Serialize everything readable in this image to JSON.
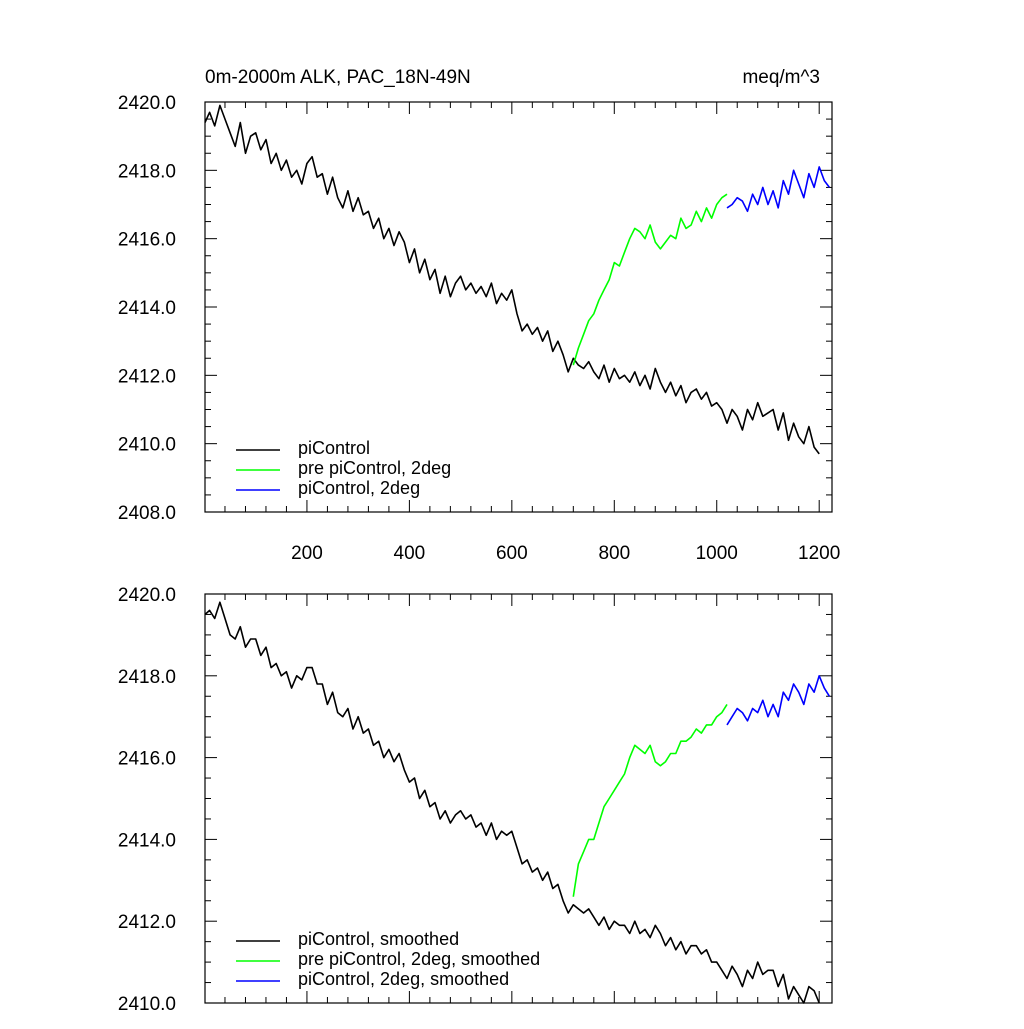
{
  "chart_data": [
    {
      "type": "line",
      "title": "0m-2000m ALK, PAC_18N-49N",
      "units": "meq/m^3",
      "xlim": [
        1,
        1225
      ],
      "ylim": [
        2408.0,
        2420.0
      ],
      "xticks": [
        200,
        400,
        600,
        800,
        1000,
        1200
      ],
      "xtick_labels": [
        "200",
        "400",
        "600",
        "800",
        "1000",
        "1200"
      ],
      "yticks": [
        2408.0,
        2410.0,
        2412.0,
        2414.0,
        2416.0,
        2418.0,
        2420.0
      ],
      "ytick_labels": [
        "2408.0",
        "2410.0",
        "2412.0",
        "2414.0",
        "2416.0",
        "2418.0",
        "2420.0"
      ],
      "grid": false,
      "legend_position": "bottom-left",
      "series": [
        {
          "name": "piControl",
          "color": "#000000",
          "x": [
            1,
            10,
            20,
            30,
            40,
            50,
            60,
            70,
            80,
            90,
            100,
            110,
            120,
            130,
            140,
            150,
            160,
            170,
            180,
            190,
            200,
            210,
            220,
            230,
            240,
            250,
            260,
            270,
            280,
            290,
            300,
            310,
            320,
            330,
            340,
            350,
            360,
            370,
            380,
            390,
            400,
            410,
            420,
            430,
            440,
            450,
            460,
            470,
            480,
            490,
            500,
            510,
            520,
            530,
            540,
            550,
            560,
            570,
            580,
            590,
            600,
            610,
            620,
            630,
            640,
            650,
            660,
            670,
            680,
            690,
            700,
            710,
            720,
            730,
            740,
            750,
            760,
            770,
            780,
            790,
            800,
            810,
            820,
            830,
            840,
            850,
            860,
            870,
            880,
            890,
            900,
            910,
            920,
            930,
            940,
            950,
            960,
            970,
            980,
            990,
            1000,
            1010,
            1020,
            1030,
            1040,
            1050,
            1060,
            1070,
            1080,
            1090,
            1100,
            1110,
            1120,
            1130,
            1140,
            1150,
            1160,
            1170,
            1180,
            1190,
            1200
          ],
          "y": [
            2419.4,
            2419.7,
            2419.3,
            2419.9,
            2419.5,
            2419.1,
            2418.7,
            2419.4,
            2418.5,
            2419.0,
            2419.1,
            2418.6,
            2418.9,
            2418.2,
            2418.5,
            2418.0,
            2418.3,
            2417.8,
            2418.0,
            2417.6,
            2418.2,
            2418.4,
            2417.8,
            2417.9,
            2417.3,
            2417.8,
            2417.2,
            2416.9,
            2417.4,
            2416.8,
            2417.2,
            2416.7,
            2416.8,
            2416.3,
            2416.6,
            2416.0,
            2416.3,
            2415.8,
            2416.2,
            2415.9,
            2415.3,
            2415.7,
            2415.0,
            2415.4,
            2414.8,
            2415.1,
            2414.4,
            2414.9,
            2414.3,
            2414.7,
            2414.9,
            2414.5,
            2414.7,
            2414.4,
            2414.6,
            2414.3,
            2414.7,
            2414.1,
            2414.4,
            2414.2,
            2414.5,
            2413.8,
            2413.3,
            2413.5,
            2413.2,
            2413.4,
            2413.0,
            2413.3,
            2412.7,
            2413.0,
            2412.6,
            2412.1,
            2412.5,
            2412.3,
            2412.2,
            2412.4,
            2412.1,
            2411.9,
            2412.3,
            2411.8,
            2412.2,
            2411.9,
            2412.0,
            2411.8,
            2412.1,
            2411.7,
            2412.0,
            2411.6,
            2412.2,
            2411.8,
            2411.5,
            2411.8,
            2411.4,
            2411.7,
            2411.2,
            2411.5,
            2411.6,
            2411.3,
            2411.5,
            2411.1,
            2411.2,
            2411.0,
            2410.6,
            2411.0,
            2410.8,
            2410.4,
            2411.0,
            2410.7,
            2411.2,
            2410.8,
            2410.9,
            2411.0,
            2410.4,
            2410.9,
            2410.1,
            2410.6,
            2410.2,
            2410.0,
            2410.5,
            2409.9,
            2409.7
          ]
        },
        {
          "name": "pre piControl, 2deg",
          "color": "#00ff00",
          "x": [
            720,
            730,
            740,
            750,
            760,
            770,
            780,
            790,
            800,
            810,
            820,
            830,
            840,
            850,
            860,
            870,
            880,
            890,
            900,
            910,
            920,
            930,
            940,
            950,
            960,
            970,
            980,
            990,
            1000,
            1010,
            1020
          ],
          "y": [
            2412.3,
            2412.8,
            2413.2,
            2413.6,
            2413.8,
            2414.2,
            2414.5,
            2414.8,
            2415.3,
            2415.2,
            2415.6,
            2416.0,
            2416.3,
            2416.2,
            2416.0,
            2416.4,
            2415.9,
            2415.7,
            2415.9,
            2416.1,
            2416.0,
            2416.6,
            2416.3,
            2416.4,
            2416.8,
            2416.5,
            2416.9,
            2416.6,
            2417.0,
            2417.2,
            2417.3
          ]
        },
        {
          "name": "piControl, 2deg",
          "color": "#0000ff",
          "x": [
            1020,
            1030,
            1040,
            1050,
            1060,
            1070,
            1080,
            1090,
            1100,
            1110,
            1120,
            1130,
            1140,
            1150,
            1160,
            1170,
            1180,
            1190,
            1200,
            1210,
            1220
          ],
          "y": [
            2416.9,
            2417.0,
            2417.2,
            2417.1,
            2416.8,
            2417.3,
            2417.0,
            2417.5,
            2417.0,
            2417.4,
            2416.9,
            2417.7,
            2417.3,
            2418.0,
            2417.6,
            2417.2,
            2417.9,
            2417.5,
            2418.1,
            2417.7,
            2417.5
          ]
        }
      ]
    },
    {
      "type": "line",
      "xlim": [
        1,
        1225
      ],
      "ylim": [
        2410.0,
        2420.0
      ],
      "xticks": [
        200,
        400,
        600,
        800,
        1000,
        1200
      ],
      "yticks": [
        2410.0,
        2412.0,
        2414.0,
        2416.0,
        2418.0,
        2420.0
      ],
      "ytick_labels": [
        "2410.0",
        "2412.0",
        "2414.0",
        "2416.0",
        "2418.0",
        "2420.0"
      ],
      "grid": false,
      "legend_position": "bottom-left",
      "series": [
        {
          "name": "piControl, smoothed",
          "color": "#000000",
          "x": [
            1,
            10,
            20,
            30,
            40,
            50,
            60,
            70,
            80,
            90,
            100,
            110,
            120,
            130,
            140,
            150,
            160,
            170,
            180,
            190,
            200,
            210,
            220,
            230,
            240,
            250,
            260,
            270,
            280,
            290,
            300,
            310,
            320,
            330,
            340,
            350,
            360,
            370,
            380,
            390,
            400,
            410,
            420,
            430,
            440,
            450,
            460,
            470,
            480,
            490,
            500,
            510,
            520,
            530,
            540,
            550,
            560,
            570,
            580,
            590,
            600,
            610,
            620,
            630,
            640,
            650,
            660,
            670,
            680,
            690,
            700,
            710,
            720,
            730,
            740,
            750,
            760,
            770,
            780,
            790,
            800,
            810,
            820,
            830,
            840,
            850,
            860,
            870,
            880,
            890,
            900,
            910,
            920,
            930,
            940,
            950,
            960,
            970,
            980,
            990,
            1000,
            1010,
            1020,
            1030,
            1040,
            1050,
            1060,
            1070,
            1080,
            1090,
            1100,
            1110,
            1120,
            1130,
            1140,
            1150,
            1160,
            1170,
            1180,
            1190,
            1200
          ],
          "y": [
            2419.5,
            2419.6,
            2419.4,
            2419.8,
            2419.4,
            2419.0,
            2418.9,
            2419.2,
            2418.7,
            2418.9,
            2418.9,
            2418.5,
            2418.7,
            2418.2,
            2418.3,
            2418.0,
            2418.1,
            2417.7,
            2418.0,
            2417.9,
            2418.2,
            2418.2,
            2417.8,
            2417.8,
            2417.3,
            2417.6,
            2417.1,
            2417.0,
            2417.2,
            2416.7,
            2417.0,
            2416.6,
            2416.7,
            2416.3,
            2416.4,
            2416.0,
            2416.2,
            2415.9,
            2416.1,
            2415.7,
            2415.4,
            2415.5,
            2415.0,
            2415.2,
            2414.8,
            2414.9,
            2414.5,
            2414.7,
            2414.4,
            2414.6,
            2414.7,
            2414.5,
            2414.6,
            2414.3,
            2414.4,
            2414.1,
            2414.4,
            2414.0,
            2414.2,
            2414.1,
            2414.2,
            2413.8,
            2413.4,
            2413.5,
            2413.2,
            2413.3,
            2413.0,
            2413.2,
            2412.8,
            2412.9,
            2412.5,
            2412.2,
            2412.4,
            2412.3,
            2412.2,
            2412.3,
            2412.1,
            2411.9,
            2412.1,
            2411.8,
            2412.0,
            2411.9,
            2411.9,
            2411.7,
            2412.0,
            2411.7,
            2411.8,
            2411.6,
            2411.9,
            2411.7,
            2411.4,
            2411.6,
            2411.3,
            2411.5,
            2411.2,
            2411.4,
            2411.4,
            2411.2,
            2411.3,
            2411.0,
            2411.0,
            2410.8,
            2410.6,
            2410.9,
            2410.7,
            2410.4,
            2410.8,
            2410.6,
            2411.0,
            2410.7,
            2410.8,
            2410.8,
            2410.4,
            2410.7,
            2410.1,
            2410.4,
            2410.2,
            2410.0,
            2410.4,
            2410.3,
            2409.9
          ]
        },
        {
          "name": "pre piControl, 2deg, smoothed",
          "color": "#00ff00",
          "x": [
            720,
            730,
            740,
            750,
            760,
            770,
            780,
            790,
            800,
            810,
            820,
            830,
            840,
            850,
            860,
            870,
            880,
            890,
            900,
            910,
            920,
            930,
            940,
            950,
            960,
            970,
            980,
            990,
            1000,
            1010,
            1020
          ],
          "y": [
            2412.6,
            2413.4,
            2413.7,
            2414.0,
            2414.0,
            2414.4,
            2414.8,
            2415.0,
            2415.2,
            2415.4,
            2415.6,
            2416.0,
            2416.3,
            2416.2,
            2416.1,
            2416.3,
            2415.9,
            2415.8,
            2415.9,
            2416.1,
            2416.1,
            2416.4,
            2416.4,
            2416.5,
            2416.7,
            2416.6,
            2416.8,
            2416.8,
            2417.0,
            2417.1,
            2417.3
          ]
        },
        {
          "name": "piControl, 2deg, smoothed",
          "color": "#0000ff",
          "x": [
            1020,
            1030,
            1040,
            1050,
            1060,
            1070,
            1080,
            1090,
            1100,
            1110,
            1120,
            1130,
            1140,
            1150,
            1160,
            1170,
            1180,
            1190,
            1200,
            1210,
            1220
          ],
          "y": [
            2416.8,
            2417.0,
            2417.2,
            2417.1,
            2416.9,
            2417.2,
            2417.1,
            2417.4,
            2417.0,
            2417.3,
            2417.0,
            2417.6,
            2417.4,
            2417.8,
            2417.6,
            2417.3,
            2417.8,
            2417.6,
            2418.0,
            2417.7,
            2417.5
          ]
        }
      ]
    }
  ]
}
